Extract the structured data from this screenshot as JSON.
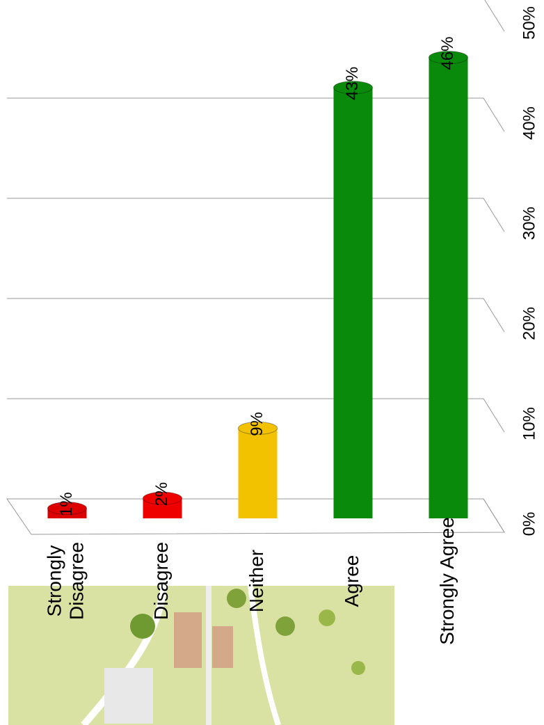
{
  "chart_data": {
    "type": "bar",
    "categories": [
      "Strongly Disagree",
      "Disagree",
      "Neither",
      "Agree",
      "Strongly Agree"
    ],
    "values": [
      1,
      2,
      9,
      43,
      46
    ],
    "value_labels": [
      "1%",
      "2%",
      "9%",
      "43%",
      "46%"
    ],
    "colors": [
      "#dd0000",
      "#ee0000",
      "#f2c200",
      "#0a8a0a",
      "#0a8a0a"
    ],
    "ylim": [
      0,
      50
    ],
    "yticks": [
      {
        "value": 0,
        "label": "0%"
      },
      {
        "value": 10,
        "label": "10%"
      },
      {
        "value": 20,
        "label": "20%"
      },
      {
        "value": 30,
        "label": "30%"
      },
      {
        "value": 40,
        "label": "40%"
      },
      {
        "value": 50,
        "label": "50%"
      }
    ],
    "grid": true
  }
}
